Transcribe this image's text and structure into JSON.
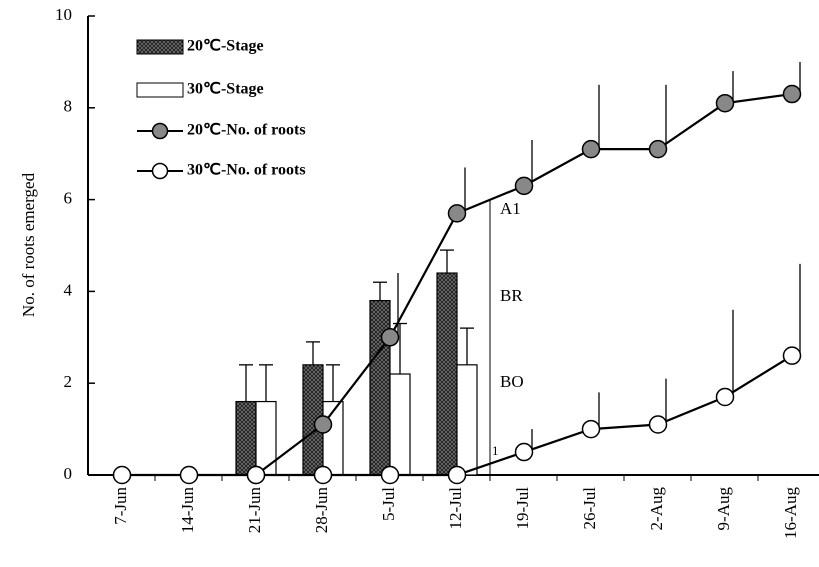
{
  "chart_data": {
    "type": "bar-line",
    "y_label": "No. of roots emerged",
    "categories": [
      "7-Jun",
      "14-Jun",
      "21-Jun",
      "28-Jun",
      "5-Jul",
      "12-Jul",
      "19-Jul",
      "26-Jul",
      "2-Aug",
      "9-Aug",
      "16-Aug"
    ],
    "ylim": [
      0,
      10
    ],
    "yticks": [
      0,
      2,
      4,
      6,
      8,
      10
    ],
    "series": [
      {
        "name": "20℃-Stage",
        "kind": "bar",
        "color": "#444444",
        "hatched": true,
        "values": [
          null,
          null,
          1.6,
          2.4,
          3.8,
          4.4,
          null,
          null,
          null,
          null,
          null
        ],
        "errors": [
          null,
          null,
          0.8,
          0.5,
          0.4,
          0.5,
          null,
          null,
          null,
          null,
          null
        ]
      },
      {
        "name": "30℃-Stage",
        "kind": "bar",
        "color": "#ffffff",
        "hatched": false,
        "values": [
          null,
          null,
          1.6,
          1.6,
          2.2,
          2.4,
          null,
          null,
          null,
          null,
          null
        ],
        "errors": [
          null,
          null,
          0.8,
          0.8,
          1.1,
          0.8,
          null,
          null,
          null,
          null,
          null
        ]
      },
      {
        "name": "20℃-No. of roots",
        "kind": "line",
        "color": "#888888",
        "values": [
          null,
          null,
          0,
          1.1,
          3.0,
          5.7,
          6.3,
          7.1,
          7.1,
          8.1,
          8.3
        ],
        "errors": [
          null,
          null,
          null,
          null,
          1.4,
          1.0,
          1.0,
          1.4,
          1.4,
          0.7,
          0.7
        ]
      },
      {
        "name": "30℃-No. of roots",
        "kind": "line",
        "color": "#ffffff",
        "values": [
          0,
          0,
          0,
          0,
          0,
          0,
          0.5,
          1.0,
          1.1,
          1.7,
          2.6
        ],
        "errors": [
          null,
          null,
          null,
          null,
          null,
          null,
          0.5,
          0.8,
          1.0,
          1.9,
          2.0
        ]
      }
    ],
    "annotations": [
      "A1",
      "BR",
      "BO",
      "1"
    ]
  }
}
